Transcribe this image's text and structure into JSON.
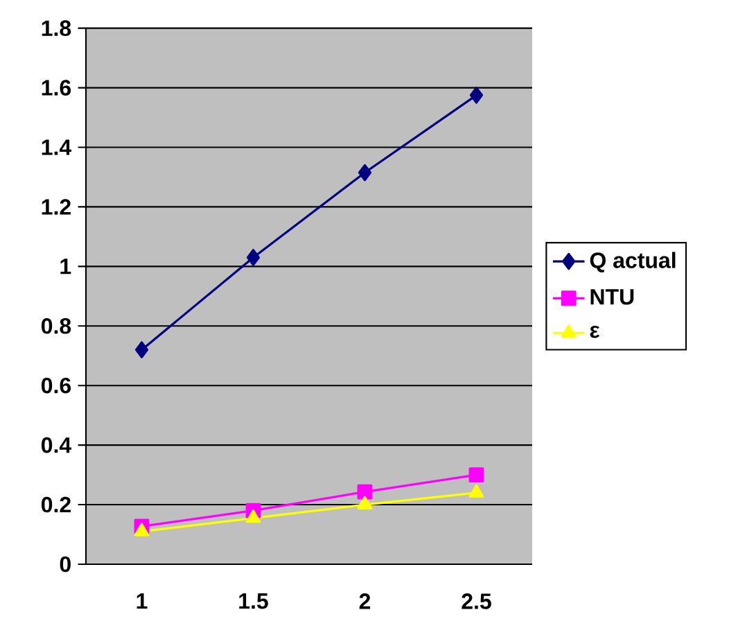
{
  "chart_data": {
    "type": "line",
    "categories": [
      "1",
      "1.5",
      "2",
      "2.5"
    ],
    "series": [
      {
        "name": "Q actual",
        "color": "#000080",
        "marker": "diamond",
        "values": [
          0.72,
          1.03,
          1.315,
          1.575
        ]
      },
      {
        "name": "NTU",
        "color": "#ff00ff",
        "marker": "square",
        "values": [
          0.127,
          0.18,
          0.243,
          0.3
        ]
      },
      {
        "name": "ε",
        "color": "#ffff00",
        "marker": "triangle",
        "values": [
          0.11,
          0.155,
          0.2,
          0.24
        ]
      }
    ],
    "ylim": [
      0,
      1.8
    ],
    "yticks": [
      0,
      0.2,
      0.4,
      0.6,
      0.8,
      1,
      1.2,
      1.4,
      1.6,
      1.8
    ],
    "grid": "y",
    "legend": "right"
  }
}
